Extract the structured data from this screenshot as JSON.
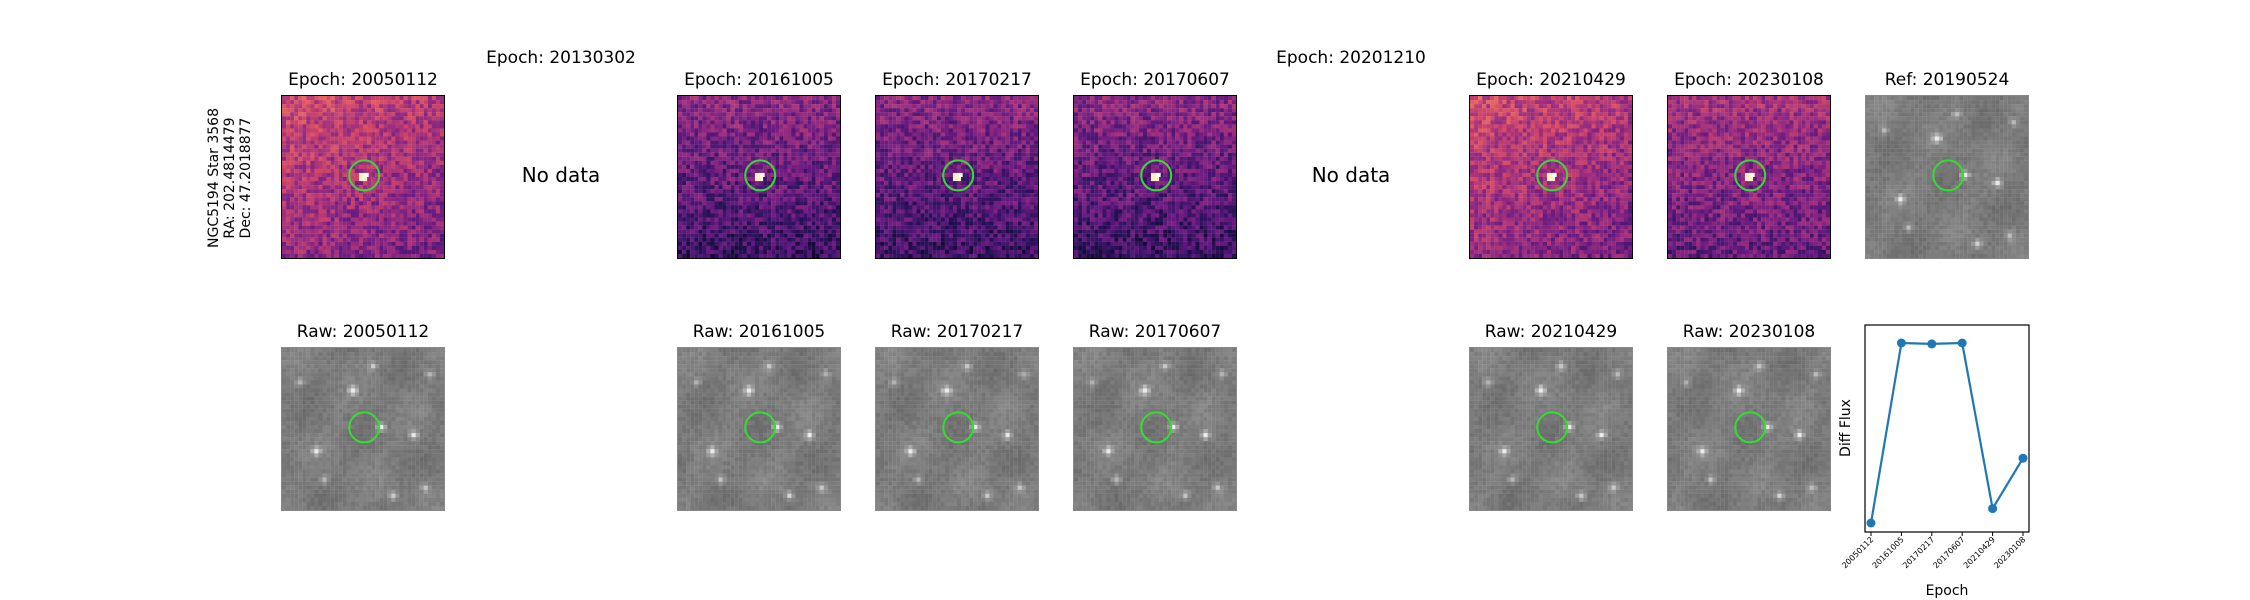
{
  "star_info": {
    "name": "NGC5194 Star 3568",
    "ra": "RA: 202.4814479",
    "dec": "Dec: 47.2018877"
  },
  "no_data_text": "No data",
  "top_row": [
    {
      "title": "Epoch: 20050112",
      "kind": "diff",
      "style": "bright"
    },
    {
      "title": "Epoch: 20130302",
      "kind": "nodata"
    },
    {
      "title": "Epoch: 20161005",
      "kind": "diff",
      "style": "dim"
    },
    {
      "title": "Epoch: 20170217",
      "kind": "diff",
      "style": "dim"
    },
    {
      "title": "Epoch: 20170607",
      "kind": "diff",
      "style": "dim"
    },
    {
      "title": "Epoch: 20201210",
      "kind": "nodata"
    },
    {
      "title": "Epoch: 20210429",
      "kind": "diff",
      "style": "bright"
    },
    {
      "title": "Epoch: 20230108",
      "kind": "diff",
      "style": "mid"
    },
    {
      "title": "Ref: 20190524",
      "kind": "ref"
    }
  ],
  "bottom_row": [
    {
      "title": "Raw: 20050112",
      "kind": "raw"
    },
    {
      "title": "",
      "kind": "empty"
    },
    {
      "title": "Raw: 20161005",
      "kind": "raw"
    },
    {
      "title": "Raw: 20170217",
      "kind": "raw"
    },
    {
      "title": "Raw: 20170607",
      "kind": "raw"
    },
    {
      "title": "",
      "kind": "empty"
    },
    {
      "title": "Raw: 20210429",
      "kind": "raw"
    },
    {
      "title": "Raw: 20230108",
      "kind": "raw"
    }
  ],
  "colors": {
    "aperture": "#33dd33",
    "series": "#1f77b4"
  },
  "chart_data": {
    "type": "line",
    "x": [
      "20050112",
      "20161005",
      "20170217",
      "20170607",
      "20210429",
      "20230108"
    ],
    "series": [
      {
        "values": [
          0.0,
          1.0,
          0.995,
          1.0,
          0.08,
          0.36
        ]
      }
    ],
    "xlabel": "Epoch",
    "ylabel": "Diff Flux",
    "ylim": [
      -0.05,
      1.1
    ],
    "grid": false
  }
}
